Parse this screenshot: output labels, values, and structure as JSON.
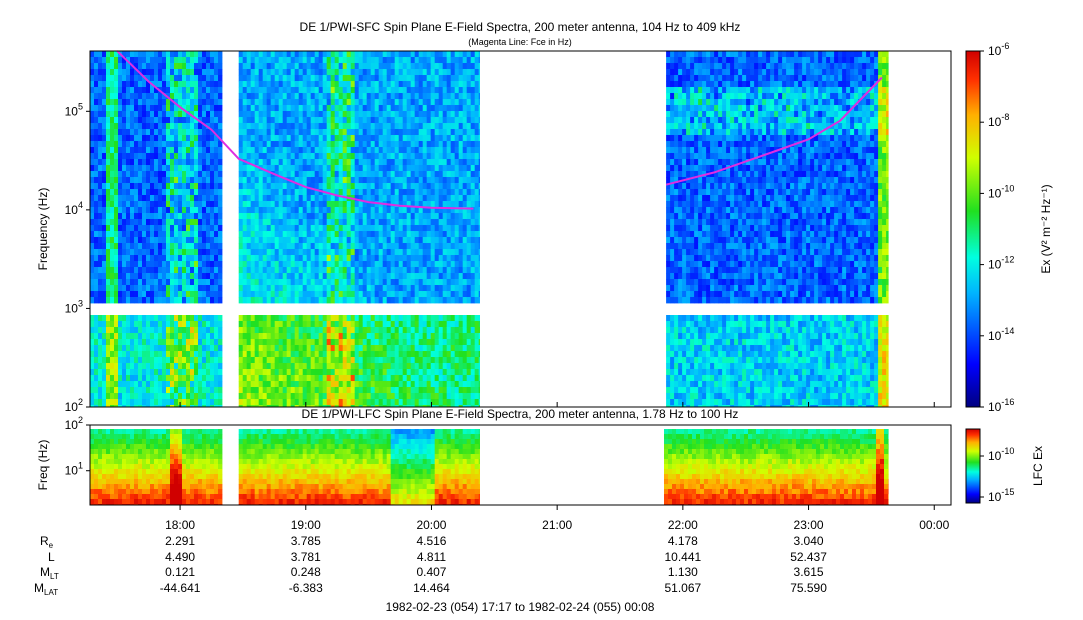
{
  "chart_data": [
    {
      "type": "heatmap",
      "title": "DE 1/PWI-SFC  Spin Plane E-Field Spectra, 200 meter antenna, 104 Hz to 409 kHz",
      "subtitle": "(Magenta Line: Fce in Hz)",
      "ylabel": "Frequency (Hz)",
      "yscale": "log",
      "ylim": [
        100,
        409000
      ],
      "y_ticks": [
        {
          "value": 100,
          "base": "10",
          "exp": "2"
        },
        {
          "value": 1000,
          "base": "10",
          "exp": "3"
        },
        {
          "value": 10000,
          "base": "10",
          "exp": "4"
        },
        {
          "value": 100000,
          "base": "10",
          "exp": "5"
        }
      ],
      "xlim": [
        "17:17",
        "00:08"
      ],
      "colorbar": {
        "label": "Ex (V² m⁻² Hz⁻¹)",
        "scale": "log",
        "range": [
          1e-16,
          1e-06
        ],
        "ticks": [
          {
            "base": "10",
            "exp": "-6"
          },
          {
            "base": "10",
            "exp": "-8"
          },
          {
            "base": "10",
            "exp": "-10"
          },
          {
            "base": "10",
            "exp": "-12"
          },
          {
            "base": "10",
            "exp": "-14"
          },
          {
            "base": "10",
            "exp": "-16"
          }
        ]
      },
      "data_intervals": [
        [
          "17:17",
          "18:20"
        ],
        [
          "18:28",
          "20:23"
        ],
        [
          "21:52",
          "23:38"
        ]
      ],
      "fce_line": [
        {
          "t": "17:30",
          "f": 420000
        },
        {
          "t": "17:45",
          "f": 200000
        },
        {
          "t": "18:00",
          "f": 110000
        },
        {
          "t": "18:15",
          "f": 65000
        },
        {
          "t": "18:28",
          "f": 33000
        },
        {
          "t": "18:45",
          "f": 23000
        },
        {
          "t": "19:00",
          "f": 17000
        },
        {
          "t": "19:15",
          "f": 14000
        },
        {
          "t": "19:30",
          "f": 12000
        },
        {
          "t": "19:45",
          "f": 11000
        },
        {
          "t": "20:00",
          "f": 10500
        },
        {
          "t": "20:20",
          "f": 10300
        },
        {
          "t": "21:52",
          "f": 18000
        },
        {
          "t": "22:15",
          "f": 24000
        },
        {
          "t": "22:45",
          "f": 40000
        },
        {
          "t": "23:00",
          "f": 52000
        },
        {
          "t": "23:15",
          "f": 80000
        },
        {
          "t": "23:35",
          "f": 220000
        }
      ],
      "fce_color": "#e02de0"
    },
    {
      "type": "heatmap",
      "title": "DE 1/PWI-LFC  Spin Plane E-Field Spectra, 200 meter antenna, 1.78 Hz to 100 Hz",
      "ylabel": "Freq (Hz)",
      "yscale": "log",
      "ylim": [
        1.78,
        100
      ],
      "y_ticks": [
        {
          "value": 10,
          "base": "10",
          "exp": "1"
        },
        {
          "value": 100,
          "base": "10",
          "exp": "2"
        }
      ],
      "colorbar": {
        "label": "LFC Ex",
        "scale": "log",
        "ticks": [
          {
            "base": "10",
            "exp": "-10"
          },
          {
            "base": "10",
            "exp": "-15"
          }
        ]
      },
      "data_intervals": [
        [
          "17:17",
          "18:20"
        ],
        [
          "18:28",
          "20:23"
        ],
        [
          "21:51",
          "23:38"
        ]
      ]
    }
  ],
  "x_axis": {
    "ticks": [
      "18:00",
      "19:00",
      "20:00",
      "21:00",
      "22:00",
      "23:00",
      "00:00"
    ]
  },
  "ephemeris": {
    "rows": [
      {
        "label": "R",
        "sub": "e",
        "values": [
          "2.291",
          "3.785",
          "4.516",
          "",
          "4.178",
          "3.040",
          ""
        ]
      },
      {
        "label": "L",
        "sub": "",
        "values": [
          "4.490",
          "3.781",
          "4.811",
          "",
          "10.441",
          "52.437",
          ""
        ]
      },
      {
        "label": "M",
        "sub": "LT",
        "values": [
          "0.121",
          "0.248",
          "0.407",
          "",
          "1.130",
          "3.615",
          ""
        ]
      },
      {
        "label": "M",
        "sub": "LAT",
        "values": [
          "-44.641",
          "-6.383",
          "14.464",
          "",
          "51.067",
          "75.590",
          ""
        ]
      }
    ]
  },
  "time_range": "1982-02-23 (054) 17:17 to 1982-02-24 (055) 00:08"
}
